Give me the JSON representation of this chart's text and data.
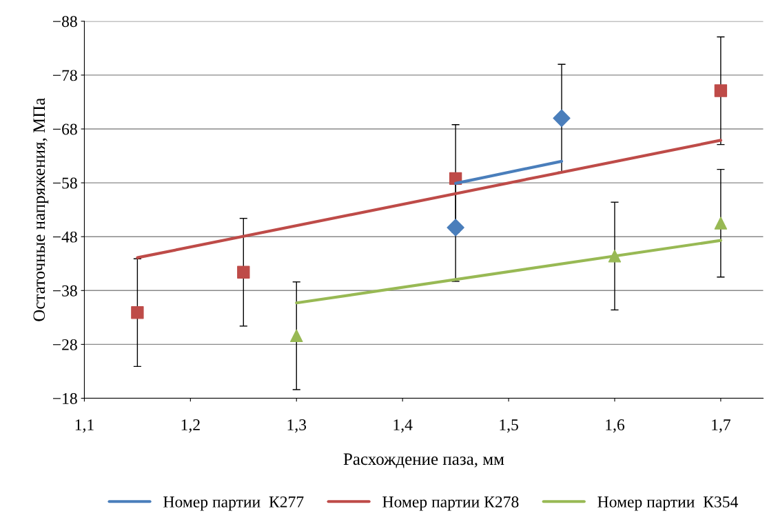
{
  "chart_data": {
    "type": "scatter",
    "xlabel": "Расхождение паза, мм",
    "ylabel": "Остаточные напряжения, МПа",
    "xlim": [
      1.1,
      1.74
    ],
    "ylim": [
      -18,
      -88
    ],
    "xticks": [
      {
        "value": 1.1,
        "label": "1,1"
      },
      {
        "value": 1.2,
        "label": "1,2"
      },
      {
        "value": 1.3,
        "label": "1,3"
      },
      {
        "value": 1.4,
        "label": "1,4"
      },
      {
        "value": 1.5,
        "label": "1,5"
      },
      {
        "value": 1.6,
        "label": "1,6"
      },
      {
        "value": 1.7,
        "label": "1,7"
      }
    ],
    "yticks": [
      {
        "value": -18,
        "label": "−18"
      },
      {
        "value": -28,
        "label": "−28"
      },
      {
        "value": -38,
        "label": "−38"
      },
      {
        "value": -48,
        "label": "−48"
      },
      {
        "value": -58,
        "label": "−58"
      },
      {
        "value": -68,
        "label": "−68"
      },
      {
        "value": -78,
        "label": "−78"
      },
      {
        "value": -88,
        "label": "−88"
      }
    ],
    "grid": "y",
    "legend": "bottom",
    "series": [
      {
        "type": "line",
        "name": "Номер партии  К277",
        "color": "#4a7ebb",
        "x": [
          1.45,
          1.55
        ],
        "values": [
          -57.9,
          -62
        ],
        "marker": "none"
      },
      {
        "type": "line",
        "name": "Номер партии К278",
        "color": "#be4b48",
        "x": [
          1.15,
          1.7
        ],
        "values": [
          -44.1,
          -65.9
        ],
        "marker": "none"
      },
      {
        "type": "line",
        "name": "Номер партии  К354",
        "color": "#98b954",
        "x": [
          1.3,
          1.7
        ],
        "values": [
          -35.7,
          -47.3
        ],
        "marker": "none"
      },
      {
        "color": "#4a7ebb",
        "x": [
          1.45,
          1.55
        ],
        "values": [
          -49.7,
          -70
        ],
        "errors": [
          10,
          10
        ],
        "marker": "diamond"
      },
      {
        "color": "#be4b48",
        "x": [
          1.15,
          1.25,
          1.45,
          1.7
        ],
        "values": [
          -33.9,
          -41.4,
          -58.8,
          -75.1
        ],
        "errors": [
          10,
          10,
          10,
          10
        ],
        "marker": "square"
      },
      {
        "color": "#98b954",
        "x": [
          1.3,
          1.6,
          1.7
        ],
        "values": [
          -29.6,
          -44.4,
          -50.5
        ],
        "errors": [
          10,
          10,
          10
        ],
        "marker": "triangle"
      }
    ]
  }
}
